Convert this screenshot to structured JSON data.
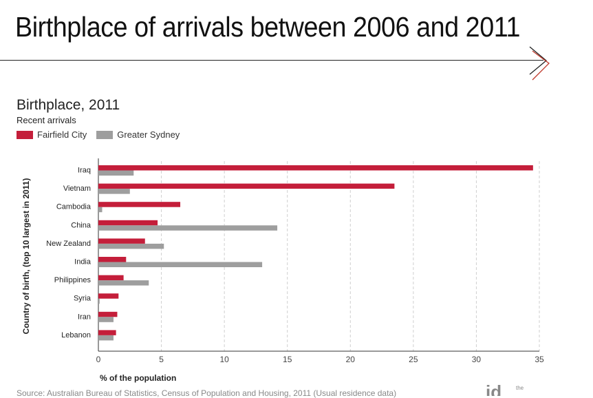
{
  "slide": {
    "title": "Birthplace of arrivals between 2006 and 2011"
  },
  "chart_data": {
    "type": "bar",
    "orientation": "horizontal",
    "title": "Birthplace, 2011",
    "subtitle": "Recent arrivals",
    "xlabel": "% of the population",
    "ylabel": "Country of birth, (top 10 largest in 2011)",
    "xlim": [
      0,
      35
    ],
    "xticks": [
      "0",
      "5",
      "10",
      "15",
      "20",
      "25",
      "30",
      "35"
    ],
    "grid": "vertical dashed",
    "legend_position": "top-left",
    "categories": [
      "Iraq",
      "Vietnam",
      "Cambodia",
      "China",
      "New Zealand",
      "India",
      "Philippines",
      "Syria",
      "Iran",
      "Lebanon"
    ],
    "series": [
      {
        "name": "Fairfield City",
        "color": "#c41e3a",
        "values": [
          34.5,
          23.5,
          6.5,
          4.7,
          3.7,
          2.2,
          2.0,
          1.6,
          1.5,
          1.4
        ]
      },
      {
        "name": "Greater Sydney",
        "color": "#9e9e9e",
        "values": [
          2.8,
          2.5,
          0.3,
          14.2,
          5.2,
          13.0,
          4.0,
          0.1,
          1.2,
          1.2
        ]
      }
    ]
  },
  "footer": {
    "source": "Source: Australian Bureau of Statistics, Census of Population and Housing, 2011 (Usual residence data)",
    "logo_text": "id",
    "logo_small": "the"
  }
}
